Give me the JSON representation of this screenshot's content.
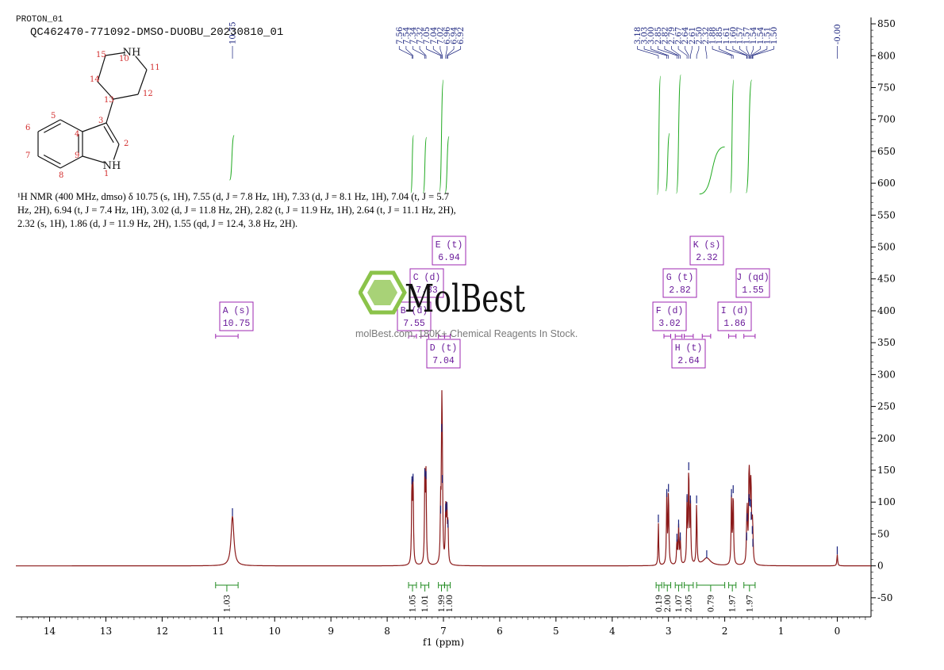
{
  "header": {
    "line1": "PROTON_01",
    "line2": "QC462470-771092-DMSO-DUOBU_20230810_01"
  },
  "summary": {
    "text": "¹H NMR (400 MHz, dmso) δ 10.75 (s, 1H), 7.55 (d, J = 7.8 Hz, 1H), 7.33 (d, J = 8.1 Hz, 1H), 7.04 (t, J = 5.7 Hz, 2H), 6.94 (t, J = 7.4 Hz, 1H), 3.02 (d, J = 11.8 Hz, 2H), 2.82 (t, J = 11.9 Hz, 1H), 2.64 (t, J = 11.1 Hz, 2H), 2.32 (s, 1H), 1.86 (d, J = 11.9 Hz, 2H), 1.55 (qd, J = 12.4, 3.8 Hz, 2H)."
  },
  "watermark": {
    "brand": "MolBest",
    "tagline": "molBest.com, 180K+ Chemical Reagents In Stock."
  },
  "structure": {
    "atoms": [
      {
        "label": "NH",
        "num": "10"
      },
      {
        "label": "",
        "num": "11"
      },
      {
        "label": "",
        "num": "12"
      },
      {
        "label": "",
        "num": "13"
      },
      {
        "label": "",
        "num": "14"
      },
      {
        "label": "",
        "num": "15"
      },
      {
        "label": "",
        "num": "3"
      },
      {
        "label": "",
        "num": "2"
      },
      {
        "label": "NH",
        "num": "1"
      },
      {
        "label": "",
        "num": "9"
      },
      {
        "label": "",
        "num": "8"
      },
      {
        "label": "",
        "num": "7"
      },
      {
        "label": "",
        "num": "6"
      },
      {
        "label": "",
        "num": "5"
      },
      {
        "label": "",
        "num": "4"
      }
    ]
  },
  "colors": {
    "spectrum": "#8b1a1a",
    "peak_label": "#1a237e",
    "integral_curve": "#22aa22",
    "integral_bracket": "#228b22",
    "multiplet_box": "#9c27b0",
    "watermark_green": "#8bc34a"
  },
  "chart_data": {
    "type": "line",
    "title": "",
    "xlabel": "f1 (ppm)",
    "ylabel": "",
    "xlim": [
      14.6,
      -0.6
    ],
    "x_reversed": true,
    "ylim": [
      -80,
      860
    ],
    "x_ticks": [
      "14",
      "13",
      "12",
      "11",
      "10",
      "9",
      "8",
      "7",
      "6",
      "5",
      "4",
      "3",
      "2",
      "1",
      "0"
    ],
    "y_ticks": [
      "850",
      "800",
      "750",
      "700",
      "650",
      "600",
      "550",
      "500",
      "450",
      "400",
      "350",
      "300",
      "250",
      "200",
      "150",
      "100",
      "50",
      "0",
      "-50"
    ],
    "peaks": [
      {
        "ppm": 10.75,
        "height": 78,
        "width": 0.03
      },
      {
        "ppm": 7.56,
        "height": 128,
        "width": 0.008
      },
      {
        "ppm": 7.54,
        "height": 132,
        "width": 0.008
      },
      {
        "ppm": 7.33,
        "height": 140,
        "width": 0.008
      },
      {
        "ppm": 7.31,
        "height": 136,
        "width": 0.008
      },
      {
        "ppm": 7.05,
        "height": 82,
        "width": 0.008
      },
      {
        "ppm": 7.03,
        "height": 210,
        "width": 0.008
      },
      {
        "ppm": 7.02,
        "height": 130,
        "width": 0.008
      },
      {
        "ppm": 6.96,
        "height": 85,
        "width": 0.008
      },
      {
        "ppm": 6.94,
        "height": 88,
        "width": 0.008
      },
      {
        "ppm": 6.92,
        "height": 60,
        "width": 0.008
      },
      {
        "ppm": 3.18,
        "height": 68,
        "width": 0.007
      },
      {
        "ppm": 3.03,
        "height": 108,
        "width": 0.008
      },
      {
        "ppm": 3.0,
        "height": 116,
        "width": 0.008
      },
      {
        "ppm": 2.85,
        "height": 38,
        "width": 0.008
      },
      {
        "ppm": 2.82,
        "height": 60,
        "width": 0.008
      },
      {
        "ppm": 2.79,
        "height": 40,
        "width": 0.008
      },
      {
        "ppm": 2.67,
        "height": 100,
        "width": 0.008
      },
      {
        "ppm": 2.64,
        "height": 150,
        "width": 0.008
      },
      {
        "ppm": 2.61,
        "height": 98,
        "width": 0.008
      },
      {
        "ppm": 2.5,
        "height": 98,
        "width": 0.008
      },
      {
        "ppm": 2.32,
        "height": 12,
        "width": 0.08
      },
      {
        "ppm": 1.88,
        "height": 108,
        "width": 0.008
      },
      {
        "ppm": 1.85,
        "height": 114,
        "width": 0.008
      },
      {
        "ppm": 1.61,
        "height": 40,
        "width": 0.008
      },
      {
        "ppm": 1.6,
        "height": 70,
        "width": 0.008
      },
      {
        "ppm": 1.57,
        "height": 100,
        "width": 0.008
      },
      {
        "ppm": 1.56,
        "height": 94,
        "width": 0.008
      },
      {
        "ppm": 1.54,
        "height": 92,
        "width": 0.008
      },
      {
        "ppm": 1.53,
        "height": 72,
        "width": 0.008
      },
      {
        "ppm": 1.51,
        "height": 50,
        "width": 0.008
      },
      {
        "ppm": 1.5,
        "height": 30,
        "width": 0.008
      },
      {
        "ppm": 0.0,
        "height": 18,
        "width": 0.008
      }
    ],
    "peak_labels": [
      "10.75",
      "7.56",
      "7.54",
      "7.34",
      "7.32",
      "7.05",
      "7.04",
      "7.02",
      "6.96",
      "6.94",
      "6.92",
      "3.18",
      "3.03",
      "3.00",
      "2.85",
      "2.82",
      "2.79",
      "2.67",
      "2.64",
      "2.61",
      "2.50",
      "2.32",
      "1.88",
      "1.85",
      "1.61",
      "1.60",
      "1.57",
      "1.57",
      "1.54",
      "1.54",
      "1.51",
      "1.50",
      "-0.00"
    ],
    "integrals": [
      {
        "from": 11.05,
        "to": 10.65,
        "value": "1.03"
      },
      {
        "from": 7.62,
        "to": 7.48,
        "value": "1.05"
      },
      {
        "from": 7.4,
        "to": 7.26,
        "value": "1.01"
      },
      {
        "from": 7.09,
        "to": 6.98,
        "value": "1.99"
      },
      {
        "from": 6.98,
        "to": 6.88,
        "value": "1.00"
      },
      {
        "from": 3.22,
        "to": 3.12,
        "value": "0.19"
      },
      {
        "from": 3.08,
        "to": 2.96,
        "value": "2.00"
      },
      {
        "from": 2.88,
        "to": 2.76,
        "value": "1.07"
      },
      {
        "from": 2.72,
        "to": 2.56,
        "value": "2.05"
      },
      {
        "from": 2.5,
        "to": 2.0,
        "value": "0.79"
      },
      {
        "from": 1.93,
        "to": 1.8,
        "value": "1.97"
      },
      {
        "from": 1.66,
        "to": 1.46,
        "value": "1.97"
      }
    ],
    "multiplets": [
      {
        "id": "A",
        "type": "s",
        "ppm": "10.75"
      },
      {
        "id": "B",
        "type": "d",
        "ppm": "7.55"
      },
      {
        "id": "C",
        "type": "d",
        "ppm": "7.33"
      },
      {
        "id": "D",
        "type": "t",
        "ppm": "7.04"
      },
      {
        "id": "E",
        "type": "t",
        "ppm": "6.94"
      },
      {
        "id": "F",
        "type": "d",
        "ppm": "3.02"
      },
      {
        "id": "G",
        "type": "t",
        "ppm": "2.82"
      },
      {
        "id": "H",
        "type": "t",
        "ppm": "2.64"
      },
      {
        "id": "I",
        "type": "d",
        "ppm": "1.86"
      },
      {
        "id": "J",
        "type": "qd",
        "ppm": "1.55"
      },
      {
        "id": "K",
        "type": "s",
        "ppm": "2.32"
      }
    ]
  }
}
